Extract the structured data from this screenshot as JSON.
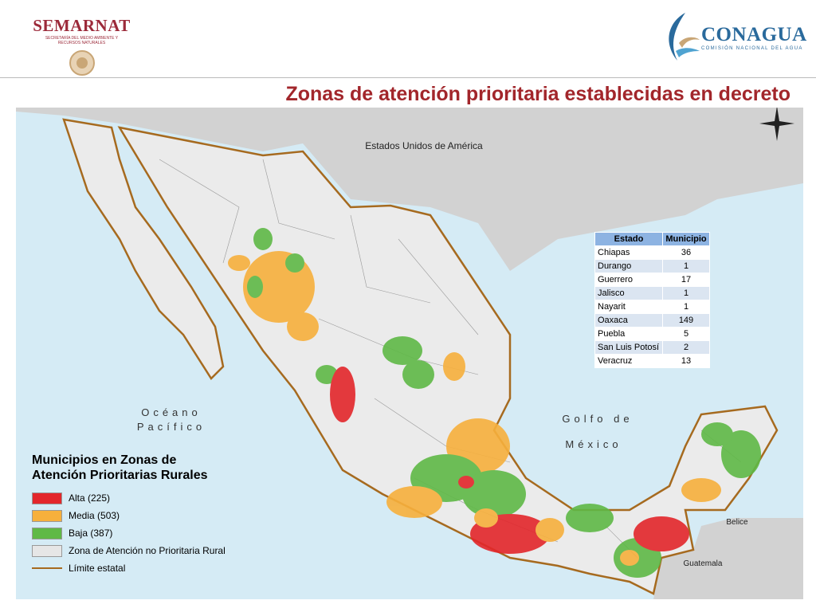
{
  "header": {
    "left_logo": {
      "name": "SEMARNAT",
      "subtitle": "SECRETARÍA DEL MEDIO AMBIENTE Y RECURSOS NATURALES"
    },
    "right_logo": {
      "name": "CONAGUA",
      "subtitle": "COMISIÓN NACIONAL DEL AGUA"
    }
  },
  "title": "Zonas de atención prioritaria establecidas en decreto",
  "map": {
    "labels": {
      "usa": "Estados Unidos de América",
      "ocean_1": "Océano",
      "ocean_2": "Pacífico",
      "gulf_1": "Golfo de",
      "gulf_2": "México",
      "belize": "Belice",
      "guatemala": "Guatemala"
    }
  },
  "table": {
    "headers": [
      "Estado",
      "Municipio"
    ],
    "rows": [
      [
        "Chiapas",
        36
      ],
      [
        "Durango",
        1
      ],
      [
        "Guerrero",
        17
      ],
      [
        "Jalisco",
        1
      ],
      [
        "Nayarit",
        1
      ],
      [
        "Oaxaca",
        149
      ],
      [
        "Puebla",
        5
      ],
      [
        "San Luis Potosí",
        2
      ],
      [
        "Veracruz",
        13
      ]
    ]
  },
  "legend": {
    "title": "Municipios en Zonas de Atención Prioritarias Rurales",
    "items": [
      {
        "label": "Alta (225)",
        "color": "#e3262b"
      },
      {
        "label": "Media (503)",
        "color": "#f7b03c"
      },
      {
        "label": "Baja (387)",
        "color": "#5fb946"
      },
      {
        "label": "Zona de Atención no Prioritaria Rural",
        "color": "#e6e6e6"
      },
      {
        "label": "Límite estatal",
        "color": "#a66a1f",
        "kind": "line"
      }
    ]
  }
}
